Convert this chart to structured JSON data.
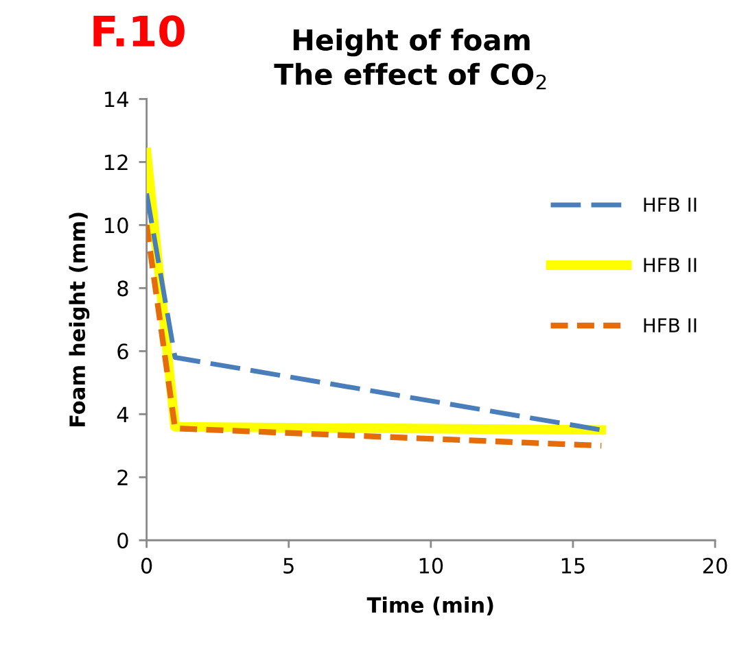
{
  "chart_data": {
    "type": "line",
    "title": "Height of foam\nThe effect of CO$_{2}$",
    "xlabel": "Time (min)",
    "ylabel": "Foam height (mm)",
    "annotations": [
      "F.10"
    ],
    "xlim": [
      0,
      20
    ],
    "xticks": [
      0,
      5,
      10,
      15,
      20
    ],
    "ylim": [
      0,
      14
    ],
    "yticks": [
      0,
      2,
      4,
      6,
      8,
      10,
      12,
      14
    ],
    "grid": false,
    "legend": "right",
    "marker": "none",
    "series": [
      {
        "name": "HFB II",
        "color": "#4a7ebb",
        "line_style": "dashed",
        "x": [
          0,
          1,
          16
        ],
        "values": [
          11,
          5.8,
          3.5
        ]
      },
      {
        "name": "HFB II",
        "color": "#ffff00",
        "line_style": "solid",
        "x": [
          0,
          1,
          16
        ],
        "values": [
          12.3,
          3.6,
          3.5
        ]
      },
      {
        "name": "HFB II",
        "color": "#e46c0a",
        "line_style": "dotted",
        "x": [
          0,
          1,
          16
        ],
        "values": [
          10,
          3.55,
          3.0
        ]
      }
    ]
  }
}
